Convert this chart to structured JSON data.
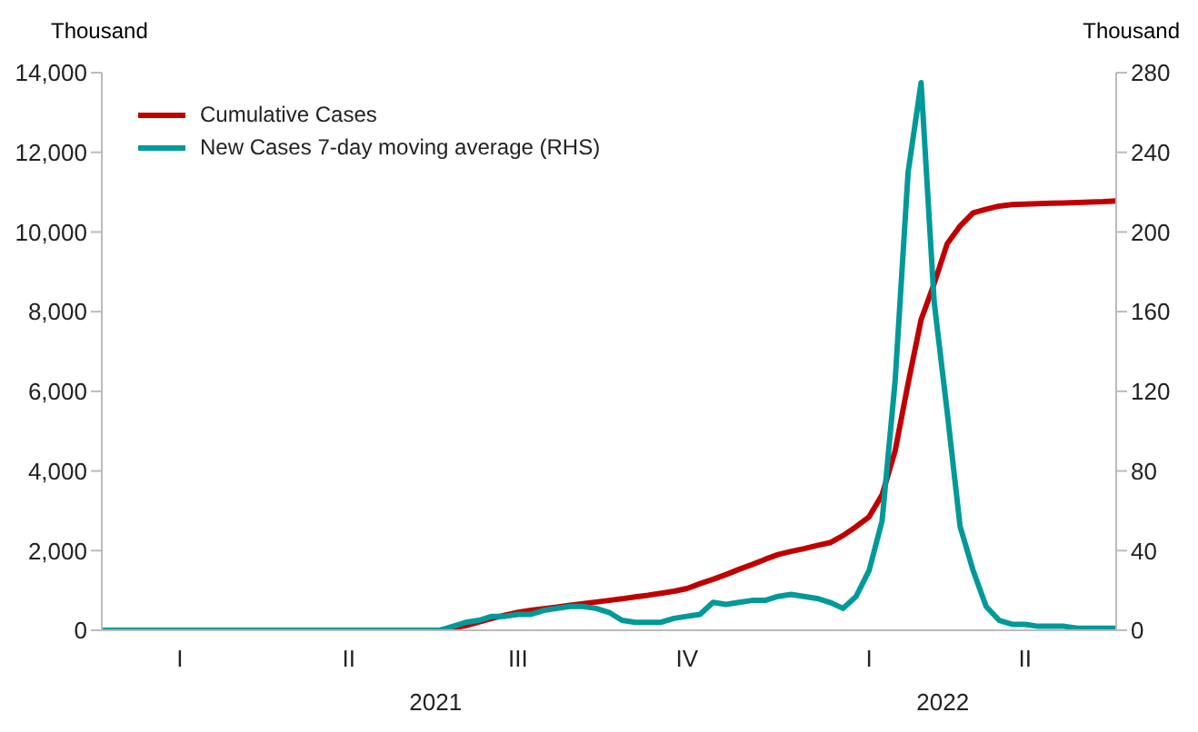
{
  "chart_data": {
    "type": "line",
    "ylabel": "Thousand",
    "y2label": "Thousand",
    "categories": [
      null,
      null,
      null,
      null,
      null,
      null,
      "I",
      null,
      null,
      null,
      null,
      null,
      null,
      null,
      null,
      null,
      null,
      null,
      null,
      "II",
      null,
      null,
      null,
      null,
      null,
      null,
      null,
      null,
      null,
      null,
      null,
      null,
      "III",
      null,
      null,
      null,
      null,
      null,
      null,
      null,
      null,
      null,
      null,
      null,
      null,
      "IV",
      null,
      null,
      null,
      null,
      null,
      null,
      null,
      null,
      null,
      null,
      null,
      null,
      null,
      "I",
      null,
      null,
      null,
      null,
      null,
      null,
      null,
      null,
      null,
      null,
      null,
      "II",
      null,
      null,
      null,
      null,
      null,
      null,
      null
    ],
    "annotations": [
      "2021",
      "2022"
    ],
    "ylim": [
      0,
      14000
    ],
    "yticks": [
      {
        "value": 0,
        "label": "0"
      },
      {
        "value": 2000,
        "label": "2,000"
      },
      {
        "value": 4000,
        "label": "4,000"
      },
      {
        "value": 6000,
        "label": "6,000"
      },
      {
        "value": 8000,
        "label": "8,000"
      },
      {
        "value": 10000,
        "label": "10,000"
      },
      {
        "value": 12000,
        "label": "12,000"
      },
      {
        "value": 14000,
        "label": "14,000"
      }
    ],
    "y2lim": [
      0,
      280
    ],
    "y2ticks": [
      0,
      40,
      80,
      120,
      160,
      200,
      240,
      280
    ],
    "legend": "top left",
    "line_style": "solid",
    "series": [
      {
        "name": "Cumulative Cases",
        "color": "#c00000",
        "values": [
          null,
          null,
          null,
          null,
          null,
          null,
          null,
          null,
          null,
          null,
          null,
          null,
          null,
          null,
          null,
          null,
          null,
          null,
          null,
          null,
          null,
          null,
          null,
          null,
          null,
          null,
          0,
          50,
          120,
          210,
          300,
          380,
          450,
          500,
          540,
          580,
          630,
          670,
          710,
          750,
          790,
          840,
          880,
          930,
          980,
          1050,
          1170,
          1280,
          1400,
          1530,
          1650,
          1780,
          1900,
          1980,
          2050,
          2130,
          2200,
          2380,
          2600,
          2850,
          3400,
          4500,
          6200,
          7800,
          8700,
          9700,
          10150,
          10480,
          10570,
          10650,
          10690,
          10700,
          10710,
          10720,
          10730,
          10740,
          10750,
          10760,
          10780
        ]
      },
      {
        "name": "New Cases 7-day moving average (RHS)",
        "color": "#009999",
        "axis": "y2",
        "values": [
          0,
          0,
          0,
          0,
          0,
          0,
          0,
          0,
          0,
          0,
          0,
          0,
          0,
          0,
          0,
          0,
          0,
          0,
          0,
          0,
          0,
          0,
          0,
          0,
          0,
          0,
          0,
          2,
          4,
          5,
          7,
          7,
          8,
          8,
          10,
          11,
          12,
          12,
          11,
          9,
          5,
          4,
          4,
          4,
          6,
          7,
          8,
          14,
          13,
          14,
          15,
          15,
          17,
          18,
          17,
          16,
          14,
          11,
          17,
          30,
          55,
          125,
          230,
          275,
          165,
          110,
          52,
          30,
          12,
          5,
          3,
          3,
          2,
          2,
          2,
          1,
          1,
          1,
          1
        ]
      }
    ]
  }
}
